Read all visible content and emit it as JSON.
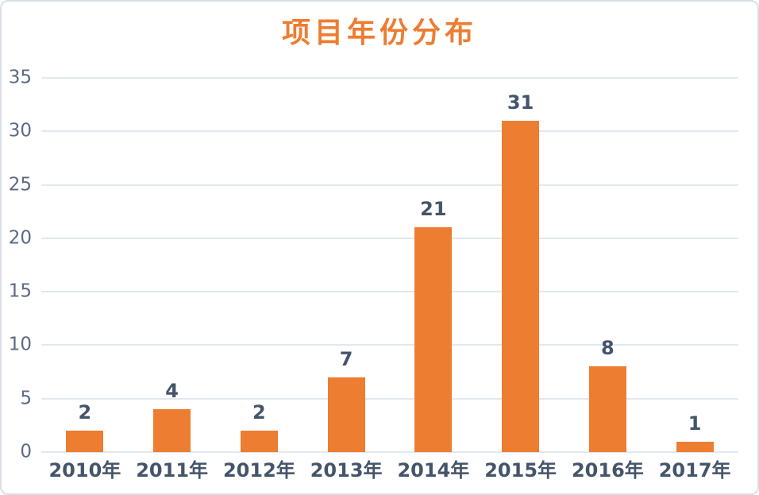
{
  "chart_data": {
    "type": "bar",
    "title": "项目年份分布",
    "categories": [
      "2010年",
      "2011年",
      "2012年",
      "2013年",
      "2014年",
      "2015年",
      "2016年",
      "2017年"
    ],
    "values": [
      2,
      4,
      2,
      7,
      21,
      31,
      8,
      1
    ],
    "yticks": [
      0,
      5,
      10,
      15,
      20,
      25,
      30,
      35
    ],
    "ylim": [
      0,
      35
    ],
    "xlabel": "",
    "ylabel": "",
    "grid": true,
    "legend_position": "none",
    "colors": {
      "bar": "#ED7D31",
      "title": "#ED7D31",
      "value_label": "#44546A",
      "x_tick": "#44546A",
      "y_tick": "#5B6B83",
      "gridline": "#E2E8F0",
      "frame_border": "#D9DFE7",
      "background": "#FFFFFF"
    }
  }
}
